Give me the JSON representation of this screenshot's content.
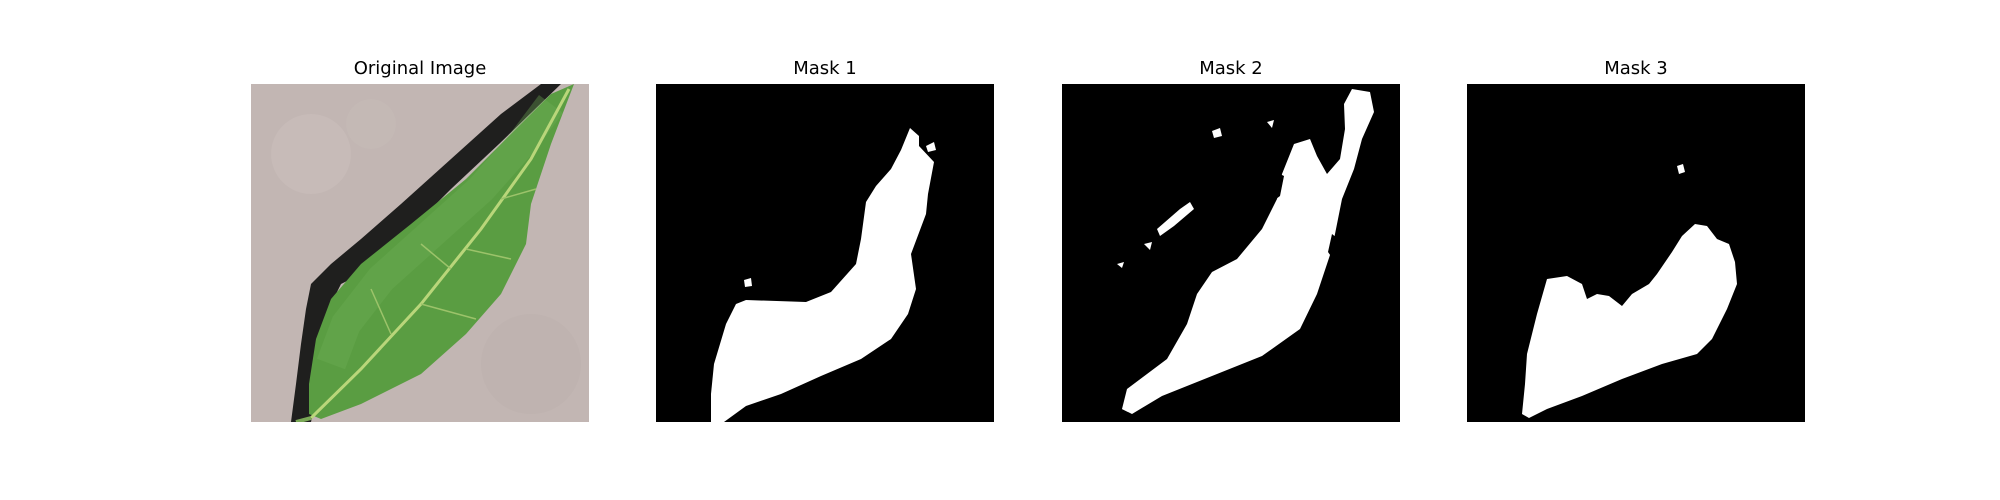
{
  "figure": {
    "panels": [
      {
        "title": "Original Image"
      },
      {
        "title": "Mask 1"
      },
      {
        "title": "Mask 2"
      },
      {
        "title": "Mask 3"
      }
    ]
  },
  "colors": {
    "background": "#ffffff",
    "mask_background": "#000000",
    "mask_foreground": "#ffffff",
    "surface": "#c2b6b3",
    "leaf_green": "#5a9d42",
    "leaf_shadow": "#1f1f1e",
    "vein": "#b9d67a"
  }
}
